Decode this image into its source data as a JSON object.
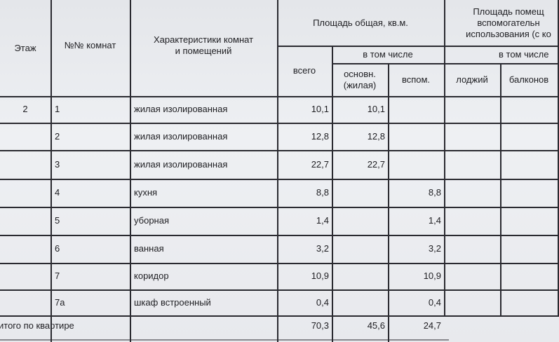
{
  "headers": {
    "floor": "Этаж",
    "room_no": "№№ комнат",
    "characteristics": "Характеристики комнат и помещений",
    "total_area": "Площадь общая, кв.м.",
    "including": "в том числе",
    "all": "всего",
    "main": "основн. (жилая)",
    "aux": "вспом.",
    "aux_area": "Площадь помещ вспомогательн использования (с ко",
    "including2": "в том числе",
    "loggias": "лоджий",
    "balconies": "балконов"
  },
  "rows": [
    {
      "floor": "2",
      "no": "1",
      "name": "жилая изолированная",
      "all": "10,1",
      "main": "10,1",
      "aux": ""
    },
    {
      "floor": "",
      "no": "2",
      "name": "жилая изолированная",
      "all": "12,8",
      "main": "12,8",
      "aux": ""
    },
    {
      "floor": "",
      "no": "3",
      "name": "жилая изолированная",
      "all": "22,7",
      "main": "22,7",
      "aux": ""
    },
    {
      "floor": "",
      "no": "4",
      "name": "кухня",
      "all": "8,8",
      "main": "",
      "aux": "8,8"
    },
    {
      "floor": "",
      "no": "5",
      "name": "уборная",
      "all": "1,4",
      "main": "",
      "aux": "1,4"
    },
    {
      "floor": "",
      "no": "6",
      "name": "ванная",
      "all": "3,2",
      "main": "",
      "aux": "3,2"
    },
    {
      "floor": "",
      "no": "7",
      "name": "коридор",
      "all": "10,9",
      "main": "",
      "aux": "10,9"
    },
    {
      "floor": "",
      "no": "7а",
      "name": "шкаф встроенный",
      "all": "0,4",
      "main": "",
      "aux": "0,4"
    }
  ],
  "total": {
    "label": "итого по квартире",
    "all": "70,3",
    "main": "45,6",
    "aux": "24,7"
  }
}
